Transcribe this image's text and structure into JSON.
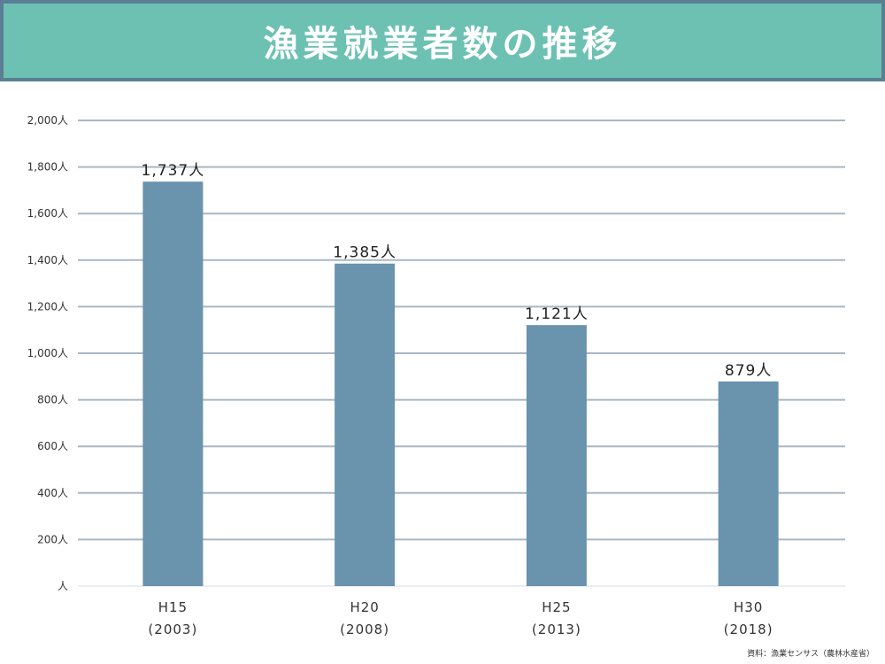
{
  "header": {
    "title": "漁業就業者数の推移"
  },
  "colors": {
    "title_bg": "#6cc1b3",
    "title_border": "#5b7e94",
    "bar": "#6a93ad",
    "grid": "#a9b7c4"
  },
  "chart_data": {
    "type": "bar",
    "title": "漁業就業者数の推移",
    "categories": [
      "H15",
      "H20",
      "H25",
      "H30"
    ],
    "category_years": [
      "(2003)",
      "(2008)",
      "(2013)",
      "(2018)"
    ],
    "values": [
      1737,
      1385,
      1121,
      879
    ],
    "data_labels": [
      "1,737人",
      "1,385人",
      "1,121人",
      "879人"
    ],
    "ylim": [
      0,
      2000
    ],
    "yticks": [
      0,
      200,
      400,
      600,
      800,
      1000,
      1200,
      1400,
      1600,
      1800,
      2000
    ],
    "ytick_labels": [
      "人",
      "200人",
      "400人",
      "600人",
      "800人",
      "1,000人",
      "1,200人",
      "1,400人",
      "1,600人",
      "1,800人",
      "2,000人"
    ],
    "grid": true
  },
  "source": "資料：漁業センサス（農林水産省）"
}
